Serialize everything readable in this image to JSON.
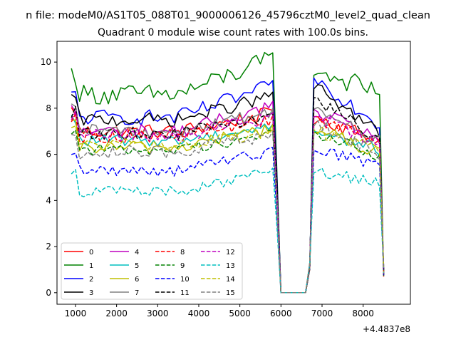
{
  "figure": {
    "suptitle": "n file: modeM0/AS1T05_088T01_9000006126_45796cztM0_level2_quad_clean",
    "title": "Quadrant 0 module wise count rates with 100.0s bins.",
    "offset_label": "+4.4837e8"
  },
  "chart_data": {
    "type": "line",
    "title": "Quadrant 0 module wise count rates with 100.0s bins.",
    "xlabel": "",
    "ylabel": "",
    "x_offset": 448370000,
    "xlim": [
      550,
      9150
    ],
    "ylim": [
      -0.5,
      10.9
    ],
    "xticks": [
      1000,
      2000,
      3000,
      4000,
      5000,
      6000,
      7000,
      8000
    ],
    "xtick_labels": [
      "1000",
      "2000",
      "3000",
      "4000",
      "5000",
      "6000",
      "7000",
      "8000"
    ],
    "yticks": [
      0,
      2,
      4,
      6,
      8,
      10
    ],
    "ytick_labels": [
      "0",
      "2",
      "4",
      "6",
      "8",
      "10"
    ],
    "grid": false,
    "legend_placement": "lower-left",
    "legend_columns": 4,
    "time_start": 900,
    "time_step": 100,
    "series": [
      {
        "name": "0",
        "color": "#ff0000",
        "dash": "solid",
        "base": 7.0,
        "amp": 0.32,
        "peak": 7.9,
        "mid": 7.6,
        "late": 6.6
      },
      {
        "name": "1",
        "color": "#008000",
        "dash": "solid",
        "base": 8.6,
        "amp": 0.45,
        "peak": 10.4,
        "mid": 9.6,
        "late": 8.7
      },
      {
        "name": "2",
        "color": "#0000ff",
        "dash": "solid",
        "base": 7.6,
        "amp": 0.35,
        "peak": 9.2,
        "mid": 9.2,
        "late": 7.3
      },
      {
        "name": "3",
        "color": "#000000",
        "dash": "solid",
        "base": 7.5,
        "amp": 0.3,
        "peak": 8.7,
        "mid": 8.9,
        "late": 6.9
      },
      {
        "name": "4",
        "color": "#bf00bf",
        "dash": "solid",
        "base": 7.0,
        "amp": 0.3,
        "peak": 8.3,
        "mid": 7.8,
        "late": 6.7
      },
      {
        "name": "5",
        "color": "#00bfbf",
        "dash": "solid",
        "base": 6.6,
        "amp": 0.25,
        "peak": 7.3,
        "mid": 7.0,
        "late": 6.2
      },
      {
        "name": "6",
        "color": "#bfbf00",
        "dash": "solid",
        "base": 6.3,
        "amp": 0.3,
        "peak": 7.3,
        "mid": 7.1,
        "late": 6.0
      },
      {
        "name": "7",
        "color": "#808080",
        "dash": "solid",
        "base": 7.0,
        "amp": 0.3,
        "peak": 8.0,
        "mid": 7.9,
        "late": 6.6
      },
      {
        "name": "8",
        "color": "#ff0000",
        "dash": "dashed",
        "base": 6.8,
        "amp": 0.3,
        "peak": 7.7,
        "mid": 7.4,
        "late": 6.5
      },
      {
        "name": "9",
        "color": "#008000",
        "dash": "dashed",
        "base": 6.2,
        "amp": 0.25,
        "peak": 7.0,
        "mid": 6.9,
        "late": 5.9
      },
      {
        "name": "10",
        "color": "#0000ff",
        "dash": "dashed",
        "base": 5.3,
        "amp": 0.25,
        "peak": 6.3,
        "mid": 6.2,
        "late": 5.5
      },
      {
        "name": "11",
        "color": "#000000",
        "dash": "dashed",
        "base": 6.9,
        "amp": 0.28,
        "peak": 7.8,
        "mid": 8.3,
        "late": 6.7
      },
      {
        "name": "12",
        "color": "#bf00bf",
        "dash": "dashed",
        "base": 6.8,
        "amp": 0.3,
        "peak": 7.8,
        "mid": 7.6,
        "late": 6.5
      },
      {
        "name": "13",
        "color": "#00bfbf",
        "dash": "dashed",
        "base": 4.4,
        "amp": 0.25,
        "peak": 5.4,
        "mid": 5.3,
        "late": 4.7
      },
      {
        "name": "14",
        "color": "#bfbf00",
        "dash": "dashed",
        "base": 6.4,
        "amp": 0.28,
        "peak": 7.1,
        "mid": 7.0,
        "late": 6.2
      },
      {
        "name": "15",
        "color": "#808080",
        "dash": "dashed",
        "base": 6.1,
        "amp": 0.3,
        "peak": 7.0,
        "mid": 7.3,
        "late": 6.0
      }
    ]
  }
}
